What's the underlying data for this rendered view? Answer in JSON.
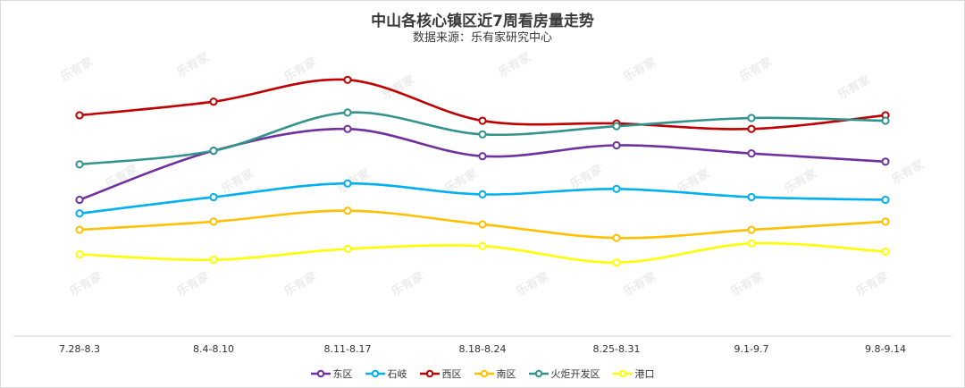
{
  "chart_data": {
    "type": "line",
    "title": "中山各核心镇区近7周看房量走势",
    "subtitle": "数据来源：乐有家研究中心",
    "watermark": "乐有家",
    "categories": [
      "7.28-8.3",
      "8.4-8.10",
      "8.11-8.17",
      "8.18-8.24",
      "8.25-8.31",
      "9.1-9.7",
      "9.8-9.14"
    ],
    "ylim": [
      0,
      100
    ],
    "grid": false,
    "legend_position": "bottom-center",
    "series": [
      {
        "name": "东区",
        "color": "#7030a0",
        "values": [
          50,
          68,
          76,
          66,
          70,
          67,
          64
        ]
      },
      {
        "name": "石岐",
        "color": "#00b0f0",
        "values": [
          45,
          51,
          56,
          52,
          54,
          51,
          50
        ]
      },
      {
        "name": "西区",
        "color": "#c00000",
        "values": [
          81,
          86,
          94,
          79,
          78,
          76,
          81
        ]
      },
      {
        "name": "南区",
        "color": "#ffc000",
        "values": [
          39,
          42,
          46,
          41,
          36,
          39,
          42
        ]
      },
      {
        "name": "火炬开发区",
        "color": "#31938c",
        "values": [
          63,
          68,
          82,
          74,
          77,
          80,
          79
        ]
      },
      {
        "name": "港口",
        "color": "#ffff00",
        "values": [
          30,
          28,
          32,
          33,
          27,
          34,
          31
        ]
      }
    ]
  }
}
